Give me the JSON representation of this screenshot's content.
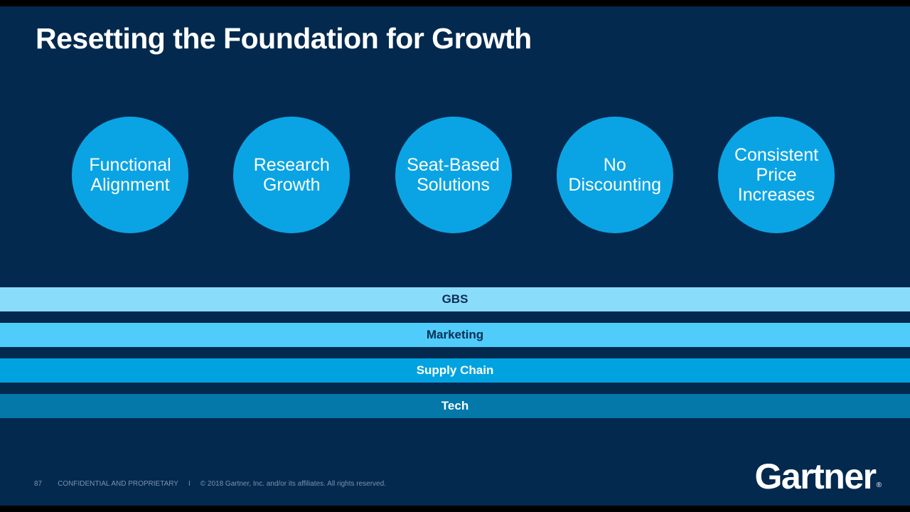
{
  "slide": {
    "title": "Resetting the Foundation for Growth",
    "circles": [
      {
        "name": "functional-alignment",
        "lines": [
          "Functional",
          "Alignment"
        ]
      },
      {
        "name": "research-growth",
        "lines": [
          "Research",
          "Growth"
        ]
      },
      {
        "name": "seat-based-solutions",
        "lines": [
          "Seat-Based",
          "Solutions"
        ]
      },
      {
        "name": "no-discounting",
        "lines": [
          "No",
          "Discounting"
        ]
      },
      {
        "name": "consistent-price-increases",
        "lines": [
          "Consistent",
          "Price",
          "Increases"
        ]
      }
    ],
    "bars": [
      {
        "label": "GBS",
        "bg": "#8ADCFB",
        "text_color": "#0B2E54"
      },
      {
        "label": "Marketing",
        "bg": "#4FCCFA",
        "text_color": "#0B2E54"
      },
      {
        "label": "Supply Chain",
        "bg": "#00A3E0",
        "text_color": "#FFFFFF"
      },
      {
        "label": "Tech",
        "bg": "#0378A9",
        "text_color": "#FFFFFF"
      }
    ],
    "footer": {
      "page_number": "87",
      "classification": "CONFIDENTIAL AND PROPRIETARY",
      "separator": "I",
      "copyright": "© 2018 Gartner, Inc. and/or its affiliates. All rights reserved."
    },
    "logo": {
      "text": "Gartner",
      "registered_mark": "®"
    },
    "colors": {
      "background_navy": "#03294E",
      "letterbox_black": "#000000",
      "circle_fill": "#0AA4E5",
      "title_text": "#FFFFFF",
      "footer_text": "#7E92AE"
    }
  }
}
